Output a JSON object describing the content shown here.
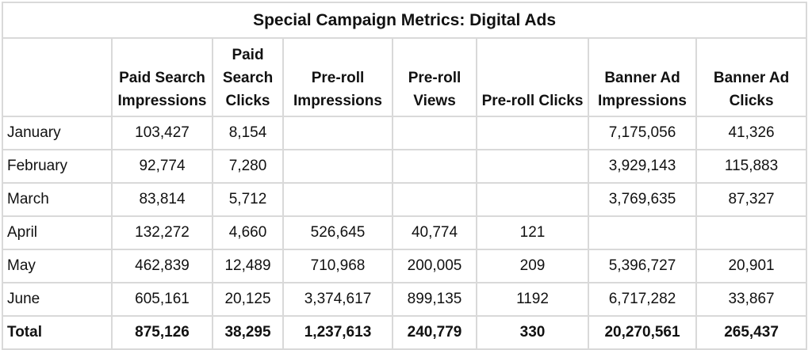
{
  "title": "Special Campaign Metrics: Digital Ads",
  "columns": [
    "",
    "Paid Search Impressions",
    "Paid Search Clicks",
    "Pre-roll Impressions",
    "Pre-roll Views",
    "Pre-roll Clicks",
    "Banner Ad Impressions",
    "Banner Ad Clicks"
  ],
  "rows": [
    [
      "January",
      "103,427",
      "8,154",
      "",
      "",
      "",
      "7,175,056",
      "41,326"
    ],
    [
      "February",
      "92,774",
      "7,280",
      "",
      "",
      "",
      "3,929,143",
      "115,883"
    ],
    [
      "March",
      "83,814",
      "5,712",
      "",
      "",
      "",
      "3,769,635",
      "87,327"
    ],
    [
      "April",
      "132,272",
      "4,660",
      "526,645",
      "40,774",
      "121",
      "",
      ""
    ],
    [
      "May",
      "462,839",
      "12,489",
      "710,968",
      "200,005",
      "209",
      "5,396,727",
      "20,901"
    ],
    [
      "June",
      "605,161",
      "20,125",
      "3,374,617",
      "899,135",
      "1192",
      "6,717,282",
      "33,867"
    ]
  ],
  "total": [
    "Total",
    "875,126",
    "38,295",
    "1,237,613",
    "240,779",
    "330",
    "20,270,561",
    "265,437"
  ]
}
